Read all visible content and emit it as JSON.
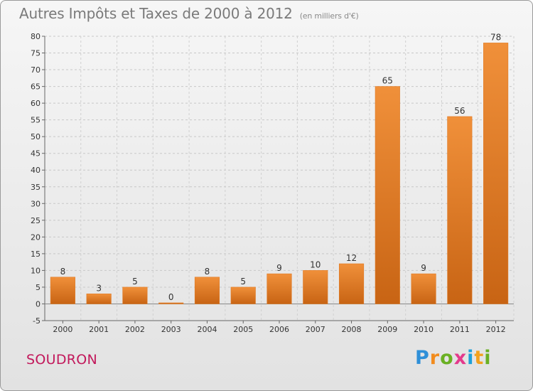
{
  "chart_data": {
    "type": "bar",
    "title": "Autres Impôts et Taxes de 2000 à 2012",
    "subtitle": "(en milliers d'€)",
    "categories": [
      "2000",
      "2001",
      "2002",
      "2003",
      "2004",
      "2005",
      "2006",
      "2007",
      "2008",
      "2009",
      "2010",
      "2011",
      "2012"
    ],
    "values": [
      8,
      3,
      5,
      0,
      8,
      5,
      9,
      10,
      12,
      65,
      9,
      56,
      78
    ],
    "ylim": [
      -5,
      80
    ],
    "yticks": [
      -5,
      0,
      5,
      10,
      15,
      20,
      25,
      30,
      35,
      40,
      45,
      50,
      55,
      60,
      65,
      70,
      75,
      80
    ],
    "grid": true,
    "bar_color": "#f0903a",
    "bar_color_dark": "#c86414"
  },
  "commune": "SOUDRON",
  "brand": {
    "letters": [
      "P",
      "r",
      "o",
      "x",
      "i",
      "t",
      "i"
    ],
    "colors": [
      "#2e8fd8",
      "#f28c1e",
      "#6ab023",
      "#e43a8c",
      "#1ea0d8",
      "#f2a21e",
      "#6ab023"
    ]
  }
}
